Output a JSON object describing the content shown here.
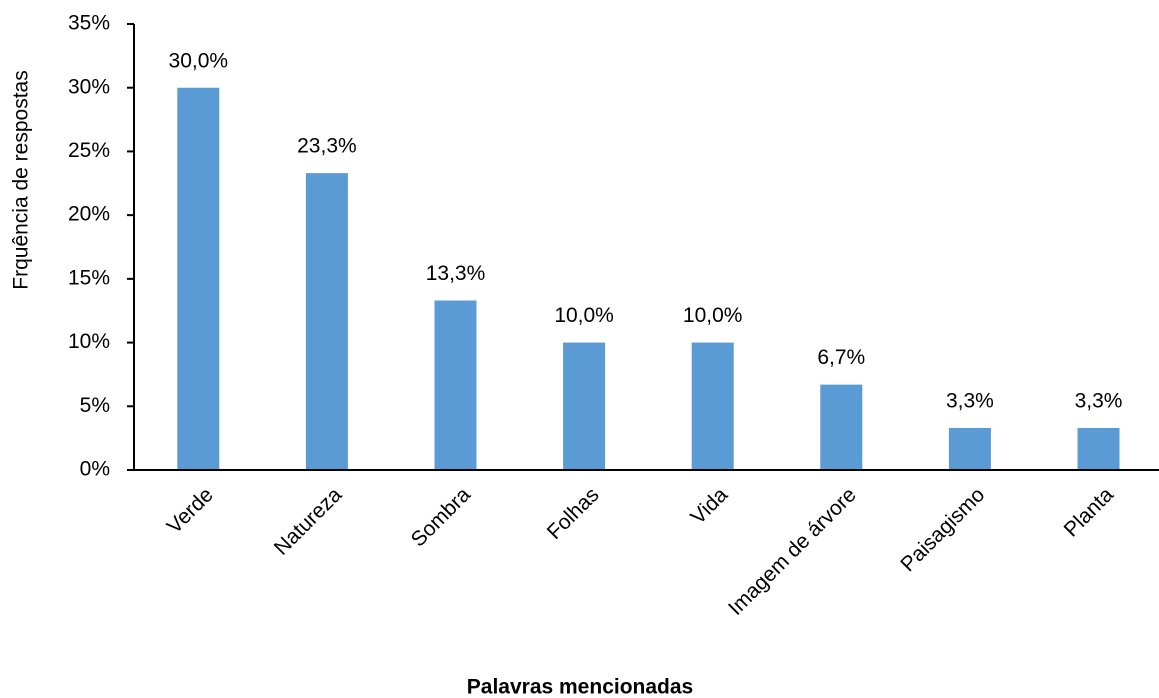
{
  "chart_data": {
    "type": "bar",
    "x_label": "Palavras mencionadas",
    "y_label": "Frquência de respostas",
    "categories": [
      "Verde",
      "Natureza",
      "Sombra",
      "Folhas",
      "Vida",
      "Imagem de árvore",
      "Paisagismo",
      "Planta"
    ],
    "values": [
      30.0,
      23.3,
      13.3,
      10.0,
      10.0,
      6.7,
      3.3,
      3.3
    ],
    "value_labels": [
      "30,0%",
      "23,3%",
      "13,3%",
      "10,0%",
      "10,0%",
      "6,7%",
      "3,3%",
      "3,3%"
    ],
    "color": "#5b9bd5",
    "ylim": [
      0,
      35
    ],
    "yticks": [
      {
        "value": 0,
        "label": "0%"
      },
      {
        "value": 5,
        "label": "5%"
      },
      {
        "value": 10,
        "label": "10%"
      },
      {
        "value": 15,
        "label": "15%"
      },
      {
        "value": 20,
        "label": "20%"
      },
      {
        "value": 25,
        "label": "25%"
      },
      {
        "value": 30,
        "label": "30%"
      },
      {
        "value": 35,
        "label": "35%"
      }
    ],
    "grid": false
  }
}
